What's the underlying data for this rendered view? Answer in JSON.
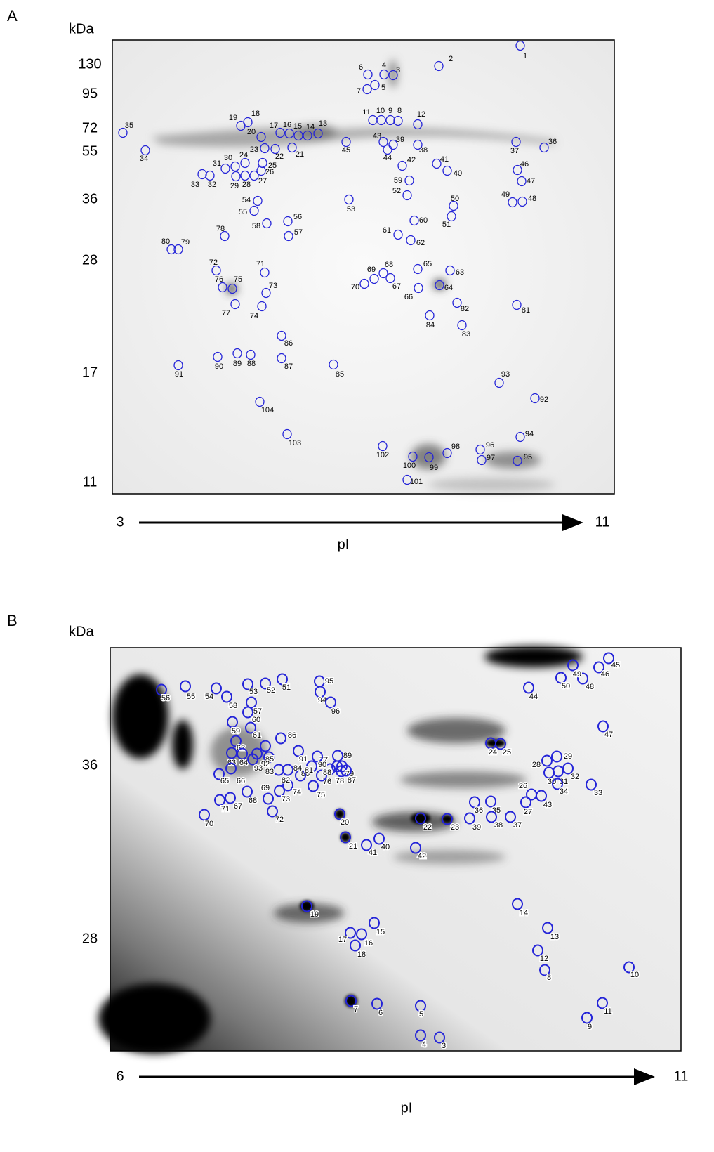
{
  "panels": [
    {
      "letter": "A",
      "y_unit": "kDa",
      "y_labels": [
        130,
        95,
        72,
        55,
        36,
        28,
        17,
        11
      ],
      "x_start": 3,
      "x_end": 11,
      "x_label": "pI",
      "spots": [
        1,
        2,
        3,
        4,
        5,
        6,
        7,
        8,
        9,
        10,
        11,
        12,
        13,
        14,
        15,
        16,
        17,
        18,
        19,
        20,
        21,
        22,
        23,
        24,
        25,
        26,
        27,
        28,
        29,
        30,
        31,
        32,
        33,
        34,
        35,
        36,
        37,
        38,
        39,
        40,
        41,
        42,
        43,
        44,
        45,
        46,
        47,
        48,
        49,
        50,
        51,
        52,
        53,
        54,
        55,
        56,
        57,
        58,
        59,
        60,
        61,
        62,
        63,
        64,
        65,
        66,
        67,
        68,
        69,
        70,
        71,
        72,
        73,
        74,
        75,
        76,
        77,
        78,
        79,
        80,
        81,
        82,
        83,
        84,
        85,
        86,
        87,
        88,
        89,
        90,
        91,
        92,
        93,
        94,
        95,
        96,
        97,
        98,
        99,
        100,
        101,
        102,
        103,
        104
      ]
    },
    {
      "letter": "B",
      "y_unit": "kDa",
      "y_labels": [
        36,
        28
      ],
      "x_start": 6,
      "x_end": 11,
      "x_label": "pI",
      "spots": [
        3,
        4,
        5,
        6,
        7,
        8,
        9,
        10,
        11,
        12,
        13,
        14,
        15,
        16,
        17,
        18,
        19,
        20,
        21,
        22,
        23,
        24,
        25,
        26,
        27,
        28,
        29,
        30,
        31,
        32,
        33,
        34,
        35,
        36,
        37,
        38,
        39,
        40,
        41,
        42,
        43,
        44,
        45,
        46,
        47,
        48,
        49,
        50,
        51,
        52,
        53,
        54,
        55,
        56,
        57,
        58,
        59,
        60,
        61,
        62,
        63,
        64,
        65,
        66,
        67,
        68,
        69,
        70,
        71,
        72,
        73,
        74,
        75,
        76,
        77,
        78,
        79,
        80,
        81,
        82,
        83,
        84,
        85,
        86,
        87,
        88,
        89,
        90,
        91,
        92,
        93,
        94,
        95,
        96
      ]
    }
  ]
}
